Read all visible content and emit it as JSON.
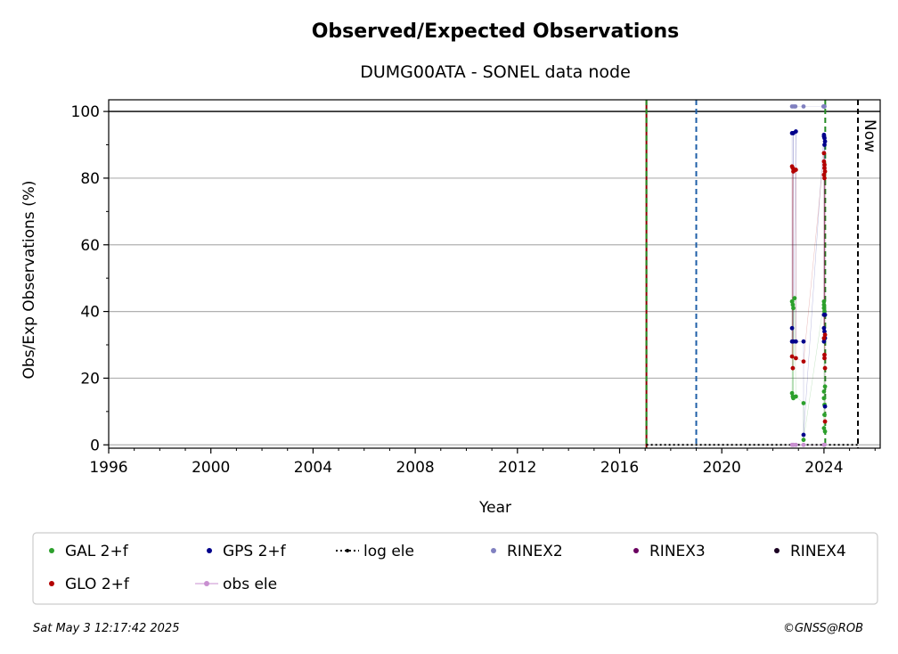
{
  "chart_data": {
    "type": "scatter",
    "title": "Observed/Expected Observations",
    "subtitle": "DUMG00ATA - SONEL data node",
    "xlabel": "Year",
    "ylabel": "Obs/Exp Observations (%)",
    "xlim": [
      1996,
      2026.2
    ],
    "ylim": [
      -1,
      103.5
    ],
    "x_ticks": [
      1996,
      2000,
      2004,
      2008,
      2012,
      2016,
      2020,
      2024
    ],
    "y_ticks": [
      0,
      20,
      40,
      60,
      80,
      100
    ],
    "grid": "horizontal",
    "legend_placement": "bottom",
    "vertical_lines": [
      {
        "x": 2017.05,
        "style": "solid",
        "color": "#8b0000"
      },
      {
        "x": 2017.05,
        "style": "dashed",
        "color": "#228b22"
      },
      {
        "x": 2019.0,
        "style": "dashed",
        "color": "#1f5fa8"
      },
      {
        "x": 2024.05,
        "style": "dashed",
        "color": "#228b22"
      },
      {
        "x": 2025.33,
        "style": "dashed",
        "color": "#000000",
        "label": "Now"
      }
    ],
    "hline": {
      "y": 100,
      "color": "#000000"
    },
    "log_ele_segment": {
      "x": [
        2017.05,
        2025.33
      ],
      "y": [
        0,
        0
      ]
    },
    "series": [
      {
        "name": "GAL 2+f",
        "color": "#2ca02c",
        "x": [
          2022.75,
          2022.78,
          2022.8,
          2022.85,
          2022.75,
          2022.78,
          2022.8,
          2022.9,
          2023.2,
          2023.2,
          2024.0,
          2024.0,
          2024.0,
          2024.02,
          2024.02,
          2024.04,
          2024.0,
          2024.0,
          2024.02,
          2024.02,
          2024.0,
          2024.04
        ],
        "y": [
          43,
          42,
          41,
          44,
          15.5,
          14.5,
          14,
          14.5,
          12.5,
          1.5,
          43,
          42,
          41,
          40,
          39,
          17.5,
          16,
          14,
          12,
          9,
          5,
          4
        ]
      },
      {
        "name": "GPS 2+f",
        "color": "#00008b",
        "x": [
          2022.75,
          2022.8,
          2022.9,
          2022.75,
          2022.8,
          2022.9,
          2022.75,
          2023.2,
          2023.2,
          2024.0,
          2024.0,
          2024.02,
          2024.04,
          2024.02,
          2024.0,
          2024.04,
          2024.0,
          2024.02,
          2024.04,
          2024.0,
          2024.04
        ],
        "y": [
          93.5,
          93.5,
          94,
          35,
          31,
          31,
          31,
          31,
          3,
          93,
          92.5,
          92,
          91,
          90,
          39,
          39,
          35,
          34,
          32,
          31,
          11.5
        ]
      },
      {
        "name": "GLO 2+f",
        "color": "#b30000",
        "x": [
          2022.75,
          2022.78,
          2022.8,
          2022.9,
          2022.75,
          2022.78,
          2022.9,
          2023.2,
          2024.0,
          2024.0,
          2024.02,
          2024.02,
          2024.04,
          2024.0,
          2024.02,
          2024.04,
          2024.0,
          2024.02,
          2024.02,
          2024.04,
          2024.04
        ],
        "y": [
          83.5,
          83,
          82,
          82.5,
          26.5,
          23,
          26,
          25,
          87.5,
          85,
          84,
          83,
          82,
          81,
          80,
          33,
          32,
          27,
          26,
          23,
          7
        ]
      },
      {
        "name": "obs ele",
        "color": "#c88fd0",
        "x": [
          2022.75,
          2022.8,
          2022.9,
          2023.2,
          2024.0,
          2024.02
        ],
        "y": [
          0,
          0,
          0,
          0,
          0,
          0
        ]
      },
      {
        "name": "RINEX2",
        "color": "#8080c0",
        "x": [
          2022.75,
          2022.82,
          2022.88,
          2023.2,
          2023.98,
          2024.0,
          2024.02
        ],
        "y": [
          101.5,
          101.5,
          101.5,
          101.5,
          101.5,
          101.5,
          101.5
        ]
      },
      {
        "name": "RINEX3",
        "color": "#6a0060",
        "x": [],
        "y": []
      },
      {
        "name": "RINEX4",
        "color": "#1a0022",
        "x": [],
        "y": []
      }
    ],
    "legend": [
      {
        "label": "GAL 2+f",
        "color": "#2ca02c",
        "kind": "dot"
      },
      {
        "label": "GPS 2+f",
        "color": "#00008b",
        "kind": "dot"
      },
      {
        "label": "log ele",
        "color": "#000000",
        "kind": "dotted-line"
      },
      {
        "label": "RINEX2",
        "color": "#8080c0",
        "kind": "dot"
      },
      {
        "label": "RINEX3",
        "color": "#6a0060",
        "kind": "dot"
      },
      {
        "label": "RINEX4",
        "color": "#1a0022",
        "kind": "dot"
      },
      {
        "label": "GLO 2+f",
        "color": "#b30000",
        "kind": "dot"
      },
      {
        "label": "obs ele",
        "color": "#c88fd0",
        "kind": "line-dot"
      }
    ]
  },
  "footer": {
    "timestamp": "Sat May  3 12:17:42 2025",
    "credit": "©GNSS@ROB"
  }
}
